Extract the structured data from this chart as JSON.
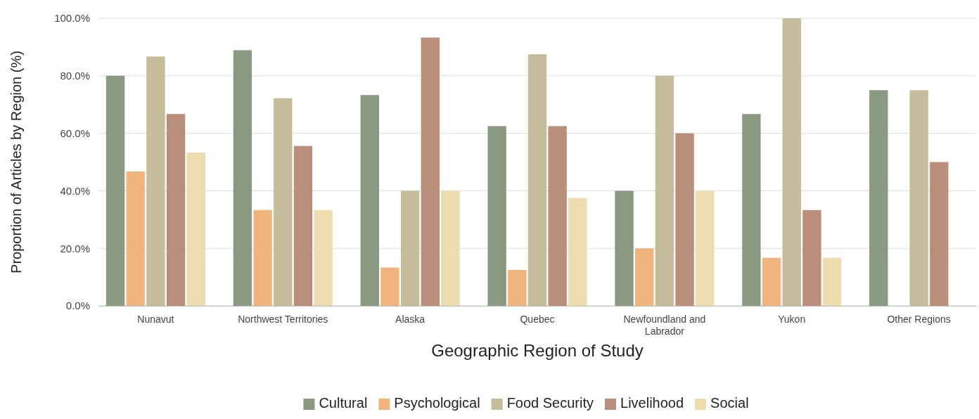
{
  "chart_data": {
    "type": "bar",
    "xlabel": "Geographic Region of Study",
    "ylabel": "Proportion of Articles by Region (%)",
    "categories": [
      "Nunavut",
      "Northwest Territories",
      "Alaska",
      "Quebec",
      "Newfoundland and Labrador",
      "Yukon",
      "Other Regions"
    ],
    "series": [
      {
        "name": "Cultural",
        "color": "#8a9a82",
        "values": [
          80,
          88.9,
          73.3,
          62.5,
          40,
          66.7,
          75
        ]
      },
      {
        "name": "Psychological",
        "color": "#f0b47e",
        "values": [
          46.7,
          33.3,
          13.3,
          12.5,
          20,
          16.7,
          0
        ]
      },
      {
        "name": "Food Security",
        "color": "#c4bc9a",
        "values": [
          86.7,
          72.2,
          40,
          87.5,
          80,
          100,
          75
        ]
      },
      {
        "name": "Livelihood",
        "color": "#b98f7c",
        "values": [
          66.7,
          55.6,
          93.3,
          62.5,
          60,
          33.3,
          50
        ]
      },
      {
        "name": "Social",
        "color": "#ecdcb0",
        "values": [
          53.3,
          33.3,
          40,
          37.5,
          40,
          16.7,
          0
        ]
      }
    ],
    "ylim": [
      0,
      100
    ],
    "yticks": [
      {
        "value": 0,
        "label": "0.0%"
      },
      {
        "value": 20,
        "label": "20.0%"
      },
      {
        "value": 40,
        "label": "40.0%"
      },
      {
        "value": 60,
        "label": "60.0%"
      },
      {
        "value": 80,
        "label": "80.0%"
      },
      {
        "value": 100,
        "label": "100.0%"
      }
    ],
    "grid": "y",
    "legend": "bottom"
  }
}
